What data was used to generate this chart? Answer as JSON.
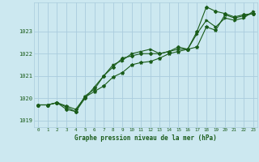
{
  "title": "Graphe pression niveau de la mer (hPa)",
  "background_color": "#cce8f0",
  "grid_color": "#aaccdd",
  "line_color": "#1a5c1a",
  "marker_color": "#1a5c1a",
  "xlim": [
    -0.5,
    23.5
  ],
  "ylim": [
    1018.7,
    1024.3
  ],
  "yticks": [
    1019,
    1020,
    1021,
    1022,
    1023
  ],
  "xticks": [
    0,
    1,
    2,
    3,
    4,
    5,
    6,
    7,
    8,
    9,
    10,
    11,
    12,
    13,
    14,
    15,
    16,
    17,
    18,
    19,
    20,
    21,
    22,
    23
  ],
  "series1_x": [
    0,
    1,
    2,
    3,
    4,
    5,
    6,
    7,
    8,
    9,
    10,
    11,
    12,
    13,
    14,
    15,
    16,
    17,
    18,
    19,
    20,
    21,
    22,
    23
  ],
  "series1_y": [
    1019.7,
    1019.7,
    1019.8,
    1019.65,
    1019.5,
    1020.05,
    1020.3,
    1020.55,
    1020.95,
    1021.15,
    1021.5,
    1021.6,
    1021.65,
    1021.8,
    1022.0,
    1022.1,
    1022.2,
    1022.3,
    1023.2,
    1023.05,
    1023.75,
    1023.6,
    1023.7,
    1023.8
  ],
  "series2_x": [
    0,
    1,
    2,
    3,
    4,
    5,
    6,
    7,
    8,
    9,
    10,
    11,
    12,
    13,
    14,
    15,
    16,
    17,
    18,
    19,
    20,
    21,
    22,
    23
  ],
  "series2_y": [
    1019.7,
    1019.7,
    1019.8,
    1019.5,
    1019.4,
    1020.0,
    1020.5,
    1021.0,
    1021.4,
    1021.8,
    1021.9,
    1022.0,
    1022.0,
    1022.0,
    1022.1,
    1022.3,
    1022.2,
    1023.0,
    1024.1,
    1023.9,
    1023.8,
    1023.65,
    1023.75,
    1023.8
  ],
  "series3_x": [
    0,
    1,
    2,
    3,
    4,
    5,
    6,
    7,
    8,
    9,
    10,
    11,
    12,
    13,
    14,
    15,
    16,
    17,
    18,
    19,
    20,
    21,
    22,
    23
  ],
  "series3_y": [
    1019.7,
    1019.7,
    1019.8,
    1019.6,
    1019.4,
    1020.1,
    1020.4,
    1021.0,
    1021.5,
    1021.7,
    1022.0,
    1022.1,
    1022.2,
    1022.0,
    1022.1,
    1022.2,
    1022.2,
    1022.9,
    1023.5,
    1023.2,
    1023.6,
    1023.5,
    1023.6,
    1023.9
  ]
}
